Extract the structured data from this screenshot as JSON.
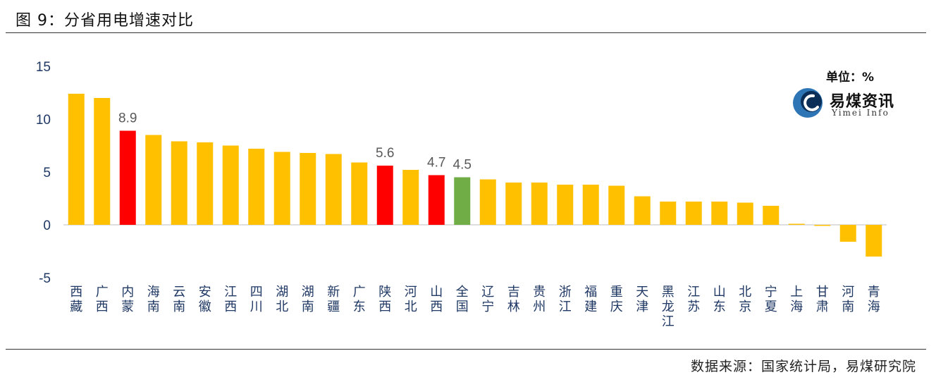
{
  "figure": {
    "title": "图 9：分省用电增速对比",
    "unit": "单位：%",
    "source": "数据来源：国家统计局，易煤研究院",
    "logo": {
      "name_cn": "易煤资讯",
      "name_en": "Yimei Info",
      "icon": "yimei-logo-icon"
    }
  },
  "chart_data": {
    "type": "bar",
    "categories": [
      "西藏",
      "广西",
      "内蒙",
      "海南",
      "云南",
      "安徽",
      "江西",
      "四川",
      "湖北",
      "湖南",
      "新疆",
      "广东",
      "陕西",
      "河北",
      "山西",
      "全国",
      "辽宁",
      "吉林",
      "贵州",
      "浙江",
      "福建",
      "重庆",
      "天津",
      "黑龙江",
      "江苏",
      "山东",
      "北京",
      "宁夏",
      "上海",
      "甘肃",
      "河南",
      "青海"
    ],
    "values": [
      12.4,
      12.0,
      8.9,
      8.5,
      7.9,
      7.8,
      7.5,
      7.2,
      6.9,
      6.8,
      6.7,
      5.9,
      5.6,
      5.2,
      4.7,
      4.5,
      4.3,
      4.0,
      4.0,
      3.8,
      3.8,
      3.7,
      2.7,
      2.2,
      2.2,
      2.2,
      2.1,
      1.8,
      0.1,
      -0.1,
      -1.6,
      -3.0
    ],
    "ylim": [
      -5,
      15
    ],
    "yticks": [
      -5,
      0,
      5,
      10,
      15
    ],
    "grid": false,
    "colors": {
      "default": "#FFC000",
      "highlight": "#FF0000",
      "national": "#70AD47",
      "axis_text": "#1F3864",
      "value_label": "#595959"
    },
    "highlight": [
      "内蒙",
      "陕西",
      "山西"
    ],
    "national": [
      "全国"
    ],
    "data_labels": [
      {
        "category": "内蒙",
        "text": "8.9"
      },
      {
        "category": "陕西",
        "text": "5.6"
      },
      {
        "category": "山西",
        "text": "4.7"
      },
      {
        "category": "全国",
        "text": "4.5"
      }
    ]
  }
}
